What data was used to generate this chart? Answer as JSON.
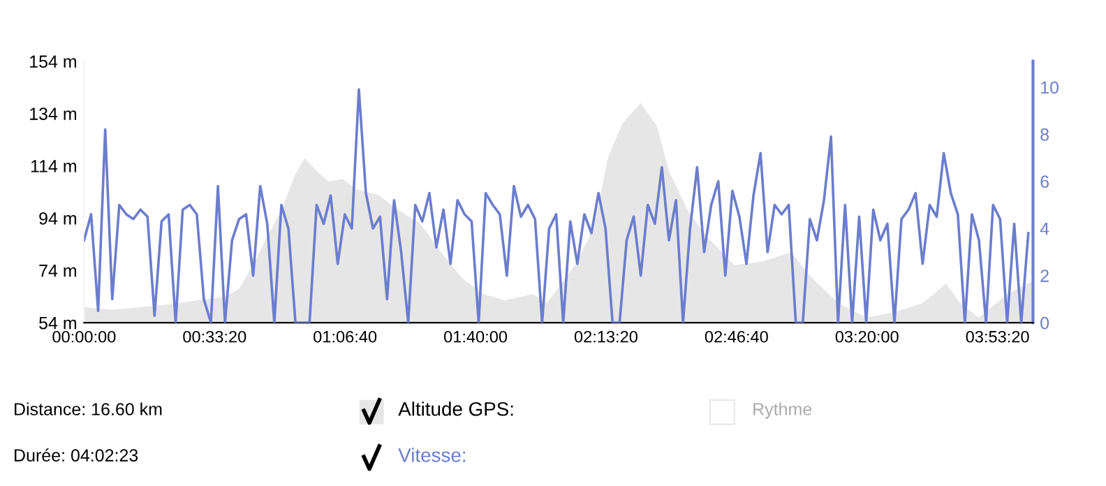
{
  "chart_data": {
    "type": "area",
    "xlim": [
      0,
      4.04
    ],
    "xticks": [
      {
        "value": 0,
        "label": "00:00:00"
      },
      {
        "value": 0.5556,
        "label": "00:33:20"
      },
      {
        "value": 1.1111,
        "label": "01:06:40"
      },
      {
        "value": 1.6667,
        "label": "01:40:00"
      },
      {
        "value": 2.2222,
        "label": "02:13:20"
      },
      {
        "value": 2.7778,
        "label": "02:46:40"
      },
      {
        "value": 3.3333,
        "label": "03:20:00"
      },
      {
        "value": 3.8889,
        "label": "03:53:20"
      }
    ],
    "ylim": [
      54,
      154
    ],
    "yticks": [
      {
        "value": 54,
        "label": "54 m"
      },
      {
        "value": 74,
        "label": "74 m"
      },
      {
        "value": 94,
        "label": "94 m"
      },
      {
        "value": 114,
        "label": "114 m"
      },
      {
        "value": 134,
        "label": "134 m"
      },
      {
        "value": 154,
        "label": "154 m"
      }
    ],
    "y2lim": [
      0,
      11.1
    ],
    "y2ticks": [
      0,
      2,
      4,
      6,
      8,
      10
    ],
    "legend": "bottom",
    "grid": false,
    "series": [
      {
        "name": "Altitude GPS:",
        "color": "#e6e6e6",
        "x": [
          0,
          0.12,
          0.24,
          0.36,
          0.48,
          0.6,
          0.66,
          0.72,
          0.78,
          0.84,
          0.9,
          0.94,
          0.98,
          1.04,
          1.1,
          1.16,
          1.25,
          1.34,
          1.43,
          1.52,
          1.61,
          1.7,
          1.79,
          1.91,
          1.97,
          2.09,
          2.17,
          2.23,
          2.29,
          2.37,
          2.44,
          2.49,
          2.57,
          2.65,
          2.77,
          2.89,
          3.01,
          3.09,
          3.21,
          3.33,
          3.45,
          3.57,
          3.67,
          3.73,
          3.81,
          3.93,
          4.04
        ],
        "values": [
          60,
          59,
          60,
          61,
          62.5,
          64,
          67,
          76,
          87,
          97,
          111,
          117,
          113,
          108,
          109,
          105,
          103,
          97,
          92,
          81,
          71,
          65,
          62.5,
          65,
          61.5,
          76,
          90,
          117,
          130,
          138,
          129,
          112,
          97,
          87,
          76,
          77.5,
          81,
          72,
          61.5,
          56,
          58,
          61.5,
          69,
          61.5,
          56,
          65,
          70
        ]
      },
      {
        "name": "Vitesse:",
        "type": "line",
        "axis": "y2",
        "color": "#6b7dcd",
        "x": [
          0,
          0.03,
          0.06,
          0.09,
          0.12,
          0.15,
          0.18,
          0.21,
          0.24,
          0.27,
          0.3,
          0.33,
          0.36,
          0.39,
          0.42,
          0.45,
          0.48,
          0.51,
          0.54,
          0.57,
          0.6,
          0.63,
          0.66,
          0.69,
          0.72,
          0.75,
          0.78,
          0.81,
          0.84,
          0.87,
          0.9,
          0.93,
          0.96,
          0.99,
          1.02,
          1.05,
          1.08,
          1.11,
          1.14,
          1.17,
          1.2,
          1.23,
          1.26,
          1.29,
          1.32,
          1.35,
          1.38,
          1.41,
          1.44,
          1.47,
          1.5,
          1.53,
          1.56,
          1.59,
          1.62,
          1.65,
          1.68,
          1.71,
          1.74,
          1.77,
          1.8,
          1.83,
          1.86,
          1.89,
          1.92,
          1.95,
          1.98,
          2.01,
          2.04,
          2.07,
          2.1,
          2.13,
          2.16,
          2.19,
          2.22,
          2.25,
          2.28,
          2.31,
          2.34,
          2.37,
          2.4,
          2.43,
          2.46,
          2.49,
          2.52,
          2.55,
          2.58,
          2.61,
          2.64,
          2.67,
          2.7,
          2.73,
          2.76,
          2.79,
          2.82,
          2.85,
          2.88,
          2.91,
          2.94,
          2.97,
          3.0,
          3.03,
          3.06,
          3.09,
          3.12,
          3.15,
          3.18,
          3.21,
          3.24,
          3.27,
          3.3,
          3.33,
          3.36,
          3.39,
          3.42,
          3.45,
          3.48,
          3.51,
          3.54,
          3.57,
          3.6,
          3.63,
          3.66,
          3.69,
          3.72,
          3.75,
          3.78,
          3.81,
          3.84,
          3.87,
          3.9,
          3.93,
          3.96,
          3.99,
          4.02
        ],
        "values": [
          3.5,
          4.6,
          0.5,
          8.2,
          1.0,
          5.0,
          4.6,
          4.4,
          4.8,
          4.5,
          0.3,
          4.3,
          4.6,
          0,
          4.8,
          5.0,
          4.6,
          1.0,
          0,
          5.8,
          0,
          3.5,
          4.4,
          4.6,
          2.0,
          5.8,
          4.2,
          0,
          5.0,
          4.0,
          0,
          0,
          0,
          5.0,
          4.2,
          5.4,
          2.5,
          4.6,
          4.0,
          9.9,
          5.5,
          4.0,
          4.5,
          1.0,
          5.2,
          3.0,
          0,
          5.0,
          4.3,
          5.5,
          3.2,
          4.8,
          2.5,
          5.2,
          4.6,
          4.3,
          0,
          5.5,
          5.0,
          4.6,
          2.0,
          5.8,
          4.5,
          5.0,
          4.4,
          0,
          4.0,
          4.6,
          0,
          4.3,
          2.5,
          4.6,
          3.8,
          5.5,
          4.0,
          0,
          0,
          3.5,
          4.5,
          2.0,
          5.0,
          4.2,
          6.6,
          3.5,
          5.2,
          0,
          4.0,
          6.6,
          3.0,
          5.0,
          6.0,
          2.0,
          5.6,
          4.5,
          2.5,
          5.4,
          7.2,
          3.0,
          5.0,
          4.6,
          5.0,
          0,
          0,
          4.4,
          3.5,
          5.2,
          7.9,
          0,
          5.0,
          0,
          4.5,
          0,
          4.8,
          3.5,
          4.2,
          0,
          4.4,
          4.8,
          5.5,
          2.5,
          5.0,
          4.5,
          7.2,
          5.5,
          4.6,
          0,
          4.6,
          3.5,
          0,
          5.0,
          4.4,
          0,
          4.2,
          0,
          3.8
        ]
      }
    ],
    "annotations": [
      "Distance: 16.60 km",
      "Durée: 04:02:23",
      "Rythme"
    ]
  }
}
